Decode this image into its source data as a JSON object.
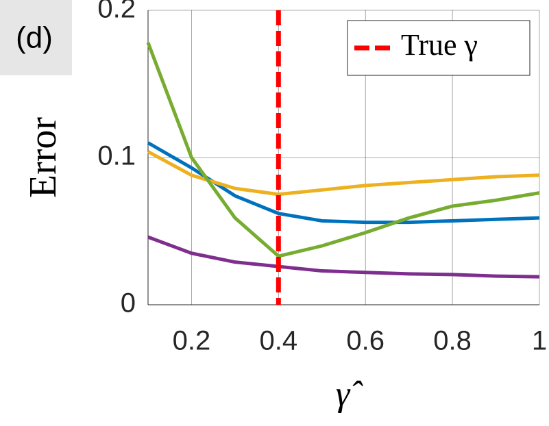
{
  "chart_data": {
    "type": "line",
    "panel_label": "(d)",
    "y_label": "Error",
    "x_label": "γ̂",
    "x": [
      0.1,
      0.2,
      0.3,
      0.4,
      0.5,
      0.6,
      0.7,
      0.8,
      0.9,
      1
    ],
    "series": [
      {
        "color": "#0072BD",
        "values": [
          0.11,
          0.093,
          0.074,
          0.062,
          0.057,
          0.056,
          0.056,
          0.057,
          0.058,
          0.059
        ]
      },
      {
        "color": "#EDB120",
        "values": [
          0.104,
          0.088,
          0.079,
          0.075,
          0.078,
          0.081,
          0.083,
          0.085,
          0.087,
          0.088
        ]
      },
      {
        "color": "#77AC30",
        "values": [
          0.178,
          0.1,
          0.059,
          0.033,
          0.04,
          0.049,
          0.059,
          0.067,
          0.071,
          0.076
        ]
      },
      {
        "color": "#7E2F8E",
        "values": [
          0.046,
          0.035,
          0.029,
          0.026,
          0.023,
          0.022,
          0.021,
          0.0205,
          0.0195,
          0.019
        ]
      }
    ],
    "reference_line": {
      "name": "True γ",
      "x": 0.4,
      "color": "#FF0000"
    },
    "xlim": [
      0.1,
      1
    ],
    "ylim": [
      0,
      0.2
    ],
    "xticks": [
      0.2,
      0.4,
      0.6,
      0.8,
      1
    ],
    "yticks": [
      0,
      0.1,
      0.2
    ],
    "grid": true,
    "legend_position": "top-right"
  }
}
